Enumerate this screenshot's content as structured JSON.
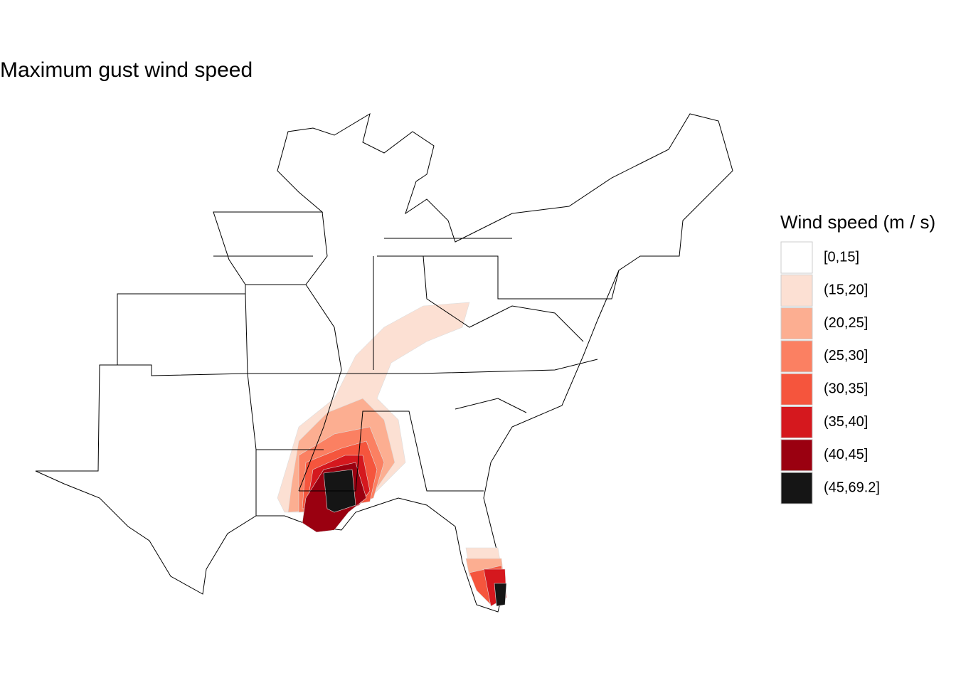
{
  "title": "Maximum gust wind speed",
  "legend": {
    "title": "Wind speed (m / s)",
    "items": [
      {
        "label": "[0,15]",
        "color": "#ffffff"
      },
      {
        "label": "(15,20]",
        "color": "#fce0d3"
      },
      {
        "label": "(20,25]",
        "color": "#fcae91"
      },
      {
        "label": "(25,30]",
        "color": "#fb8062"
      },
      {
        "label": "(30,35]",
        "color": "#f5553d"
      },
      {
        "label": "(35,40]",
        "color": "#d5181e"
      },
      {
        "label": "(40,45]",
        "color": "#9a0010"
      },
      {
        "label": "(45,69.2]",
        "color": "#151515"
      }
    ]
  }
}
